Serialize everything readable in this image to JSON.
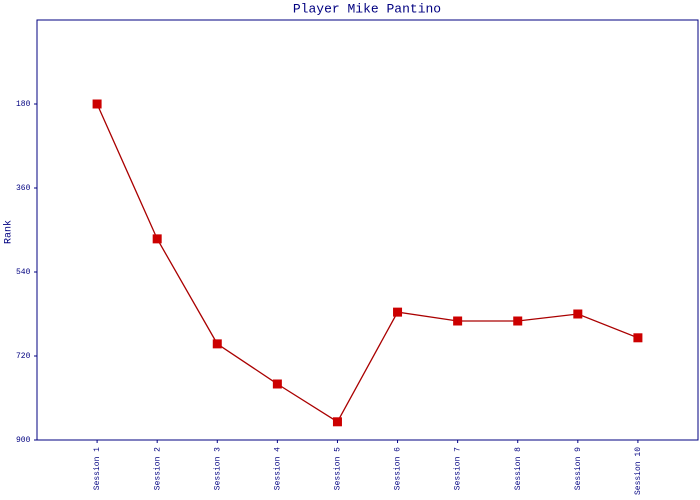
{
  "chart_data": {
    "type": "line",
    "title": "Player Mike Pantino",
    "y_label": "Rank",
    "categories": [
      "Session 1",
      "Session 2",
      "Session 3",
      "Session 4",
      "Session 5",
      "Session 6",
      "Session 7",
      "Session 8",
      "Session 9",
      "Session 10"
    ],
    "values": [
      180,
      469,
      694,
      780,
      861,
      626,
      645,
      645,
      630,
      681
    ],
    "color": "#aa0000",
    "marker_color": "#cc0000",
    "ylim": [
      900,
      0
    ],
    "yticks": [
      180,
      360,
      540,
      720,
      900
    ],
    "grid": false
  }
}
